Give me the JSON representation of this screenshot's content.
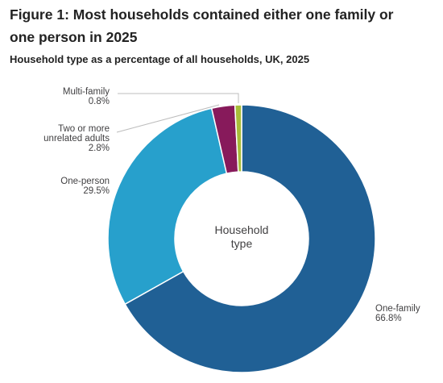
{
  "figure": {
    "title": "Figure 1: Most households contained either one family or one person in 2025",
    "subtitle": "Household type as a percentage of all households, UK, 2025"
  },
  "chart_data": {
    "type": "pie",
    "style": "donut",
    "center_label": [
      "Household",
      "type"
    ],
    "unit": "%",
    "start_angle_deg": 0,
    "direction": "clockwise",
    "slices": [
      {
        "name": "One-family",
        "value": 66.8,
        "value_label": "66.8%",
        "color": "#206095",
        "label_lines": [
          "One-family"
        ]
      },
      {
        "name": "One-person",
        "value": 29.5,
        "value_label": "29.5%",
        "color": "#27a0cc",
        "label_lines": [
          "One-person"
        ]
      },
      {
        "name": "Two or more unrelated adults",
        "value": 2.8,
        "value_label": "2.8%",
        "color": "#871a5b",
        "label_lines": [
          "Two or more",
          "unrelated adults"
        ]
      },
      {
        "name": "Multi-family",
        "value": 0.8,
        "value_label": "0.8%",
        "color": "#a8bd3a",
        "label_lines": [
          "Multi-family"
        ]
      }
    ]
  }
}
